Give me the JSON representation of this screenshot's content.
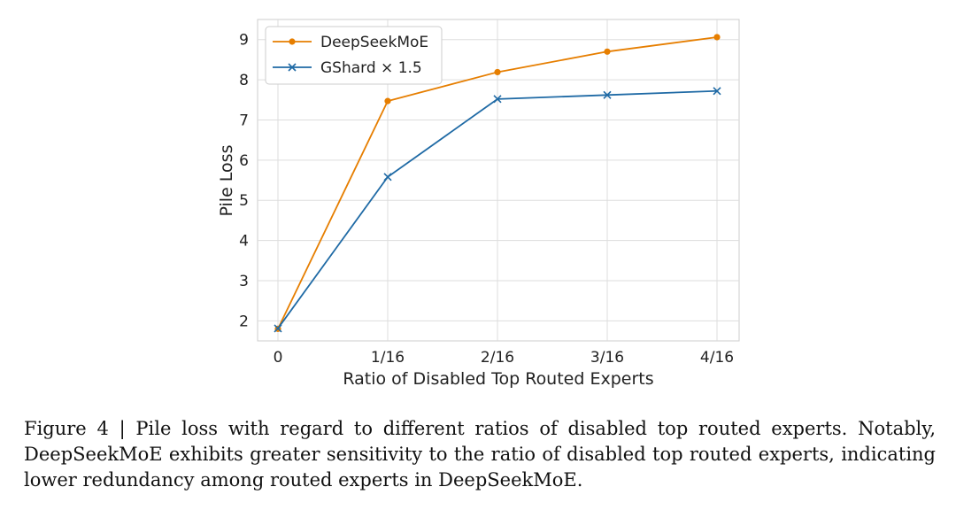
{
  "chart_data": {
    "type": "line",
    "categories": [
      "0",
      "1/16",
      "2/16",
      "3/16",
      "4/16"
    ],
    "series": [
      {
        "name": "DeepSeekMoE",
        "values": [
          1.8,
          7.47,
          8.19,
          8.7,
          9.06
        ],
        "color": "#e67e00",
        "marker": "circle"
      },
      {
        "name": "GShard × 1.5",
        "values": [
          1.81,
          5.58,
          7.52,
          7.62,
          7.72
        ],
        "color": "#1f6aa5",
        "marker": "x"
      }
    ],
    "xlabel": "Ratio of Disabled Top Routed Experts",
    "ylabel": "Pile Loss",
    "ylim": [
      1.5,
      9.5
    ],
    "yticks": [
      2,
      3,
      4,
      5,
      6,
      7,
      8,
      9
    ],
    "grid": true,
    "legend_position": "top-left"
  },
  "caption": "Figure 4 | Pile loss with regard to different ratios of disabled top routed experts. Notably, DeepSeekMoE exhibits greater sensitivity to the ratio of disabled top routed experts, indicating lower redundancy among routed experts in DeepSeekMoE."
}
